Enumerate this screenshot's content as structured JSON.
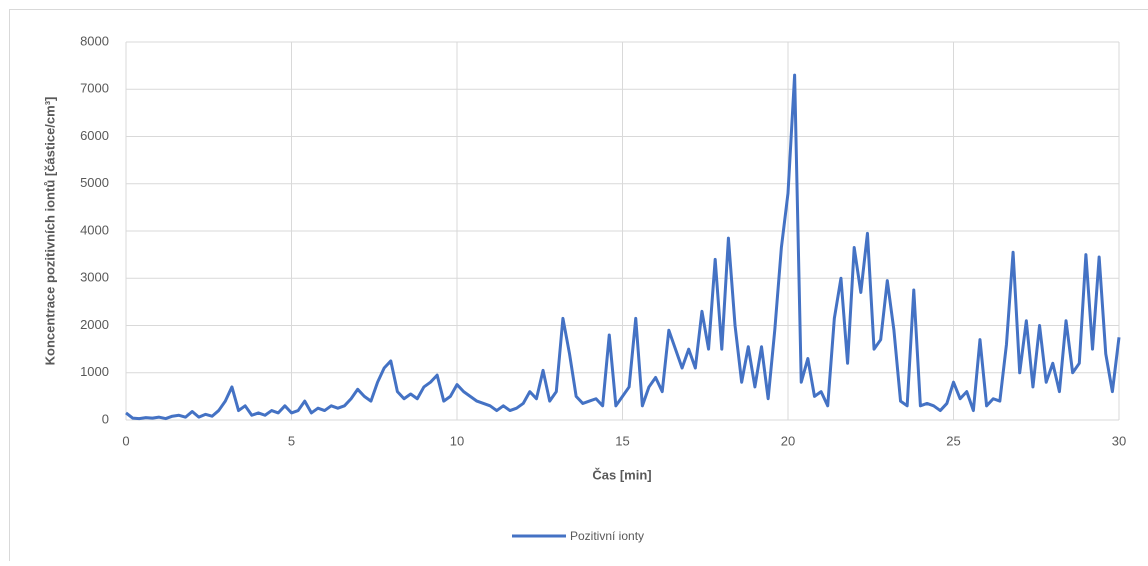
{
  "chart_data": {
    "type": "line",
    "x_label": "Čas [min]",
    "y_label": "Koncentrace pozitivních iontů [částice/cm³]",
    "x": [
      0,
      0.2,
      0.4,
      0.6,
      0.8,
      1,
      1.2,
      1.4,
      1.6,
      1.8,
      2,
      2.2,
      2.4,
      2.6,
      2.8,
      3,
      3.2,
      3.4,
      3.6,
      3.8,
      4,
      4.2,
      4.4,
      4.6,
      4.8,
      5,
      5.2,
      5.4,
      5.6,
      5.8,
      6,
      6.2,
      6.4,
      6.6,
      6.8,
      7,
      7.2,
      7.4,
      7.6,
      7.8,
      8,
      8.2,
      8.4,
      8.6,
      8.8,
      9,
      9.2,
      9.4,
      9.6,
      9.8,
      10,
      10.2,
      10.4,
      10.6,
      10.8,
      11,
      11.2,
      11.4,
      11.6,
      11.8,
      12,
      12.2,
      12.4,
      12.6,
      12.8,
      13,
      13.2,
      13.4,
      13.6,
      13.8,
      14,
      14.2,
      14.4,
      14.6,
      14.8,
      15,
      15.2,
      15.4,
      15.6,
      15.8,
      16,
      16.2,
      16.4,
      16.6,
      16.8,
      17,
      17.2,
      17.4,
      17.6,
      17.8,
      18,
      18.2,
      18.4,
      18.6,
      18.8,
      19,
      19.2,
      19.4,
      19.6,
      19.8,
      20,
      20.2,
      20.4,
      20.6,
      20.8,
      21,
      21.2,
      21.4,
      21.6,
      21.8,
      22,
      22.2,
      22.4,
      22.6,
      22.8,
      23,
      23.2,
      23.4,
      23.6,
      23.8,
      24,
      24.2,
      24.4,
      24.6,
      24.8,
      25,
      25.2,
      25.4,
      25.6,
      25.8,
      26,
      26.2,
      26.4,
      26.6,
      26.8,
      27,
      27.2,
      27.4,
      27.6,
      27.8,
      28,
      28.2,
      28.4,
      28.6,
      28.8,
      29,
      29.2,
      29.4,
      29.6,
      29.8,
      30
    ],
    "series": [
      {
        "name": "Pozitivní ionty",
        "color": "#4472c4",
        "values": [
          150,
          40,
          30,
          50,
          40,
          60,
          30,
          80,
          100,
          60,
          180,
          60,
          120,
          80,
          200,
          400,
          700,
          200,
          300,
          100,
          150,
          100,
          200,
          150,
          300,
          150,
          200,
          400,
          150,
          250,
          200,
          300,
          250,
          300,
          450,
          650,
          500,
          400,
          800,
          1100,
          1250,
          600,
          450,
          550,
          450,
          700,
          800,
          950,
          400,
          500,
          750,
          600,
          500,
          400,
          350,
          300,
          200,
          300,
          200,
          250,
          350,
          600,
          450,
          1050,
          400,
          600,
          2150,
          1400,
          500,
          350,
          400,
          450,
          300,
          1800,
          300,
          500,
          700,
          2150,
          300,
          700,
          900,
          600,
          1900,
          1500,
          1100,
          1500,
          1100,
          2300,
          1500,
          3400,
          1500,
          3850,
          2000,
          800,
          1550,
          700,
          1550,
          450,
          1900,
          3650,
          4800,
          7300,
          800,
          1300,
          500,
          600,
          300,
          2150,
          3000,
          1200,
          3650,
          2700,
          3950,
          1500,
          1700,
          2950,
          1900,
          400,
          300,
          2750,
          300,
          350,
          300,
          200,
          350,
          800,
          450,
          600,
          200,
          1700,
          300,
          450,
          400,
          1600,
          3550,
          1000,
          2100,
          700,
          2000,
          800,
          1200,
          600,
          2100,
          1000,
          1200,
          3500,
          1500,
          3450,
          1400,
          600,
          1750
        ]
      }
    ],
    "xlim": [
      0,
      30
    ],
    "xticks": [
      0,
      5,
      10,
      15,
      20,
      25,
      30
    ],
    "ylim": [
      0,
      8000
    ],
    "yticks": [
      0,
      1000,
      2000,
      3000,
      4000,
      5000,
      6000,
      7000,
      8000
    ],
    "grid": true,
    "legend": "bottom"
  }
}
